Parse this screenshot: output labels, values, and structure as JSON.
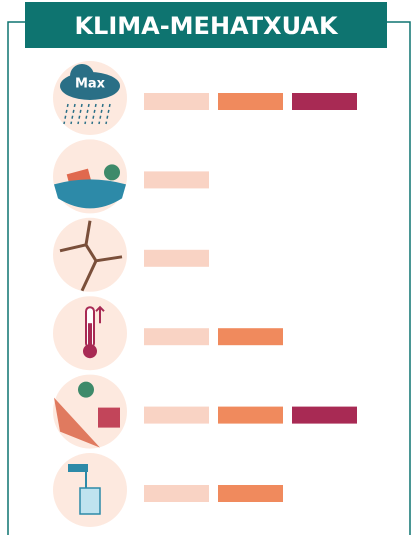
{
  "header": {
    "title": "KLIMA-MEHATXUAK"
  },
  "level_colors": [
    "#f9d3c4",
    "#f08a5d",
    "#a82a54"
  ],
  "rows": [
    {
      "icon": "rain",
      "icon_label": "Max",
      "level": 3
    },
    {
      "icon": "flood",
      "level": 1
    },
    {
      "icon": "drought",
      "level": 1
    },
    {
      "icon": "heat",
      "level": 2
    },
    {
      "icon": "landslide",
      "level": 3
    },
    {
      "icon": "water",
      "level": 2
    }
  ]
}
